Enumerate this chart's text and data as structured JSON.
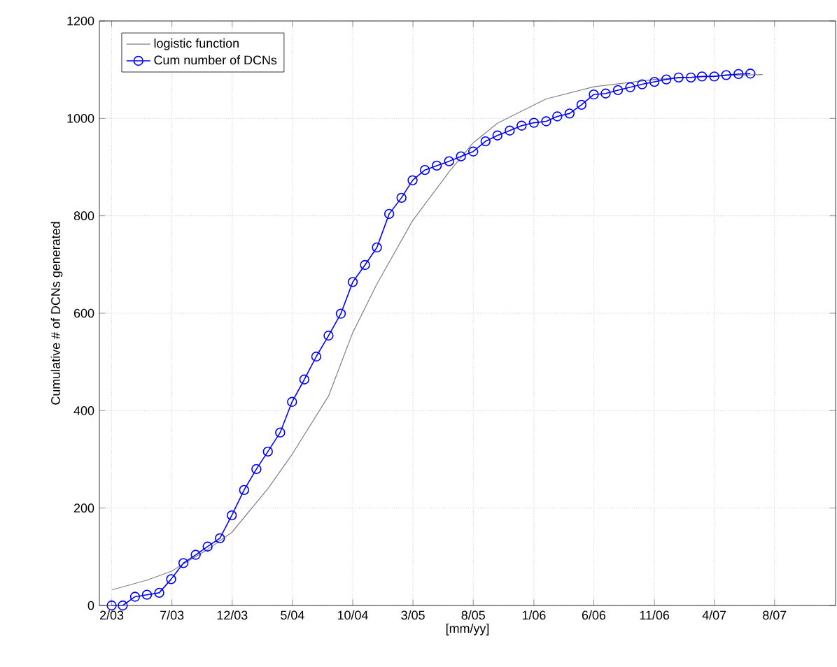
{
  "chart_data": {
    "type": "line",
    "xlabel": "[mm/yy]",
    "ylabel": "Cumulative # of DCNs generated",
    "xlim": [
      "2003-01-01",
      "2008-02-01"
    ],
    "ylim": [
      0,
      1200
    ],
    "xticks": [
      {
        "value": "2003-02-01",
        "label": "2/03"
      },
      {
        "value": "2003-07-03",
        "label": "7/03"
      },
      {
        "value": "2003-12-02",
        "label": "12/03"
      },
      {
        "value": "2004-05-02",
        "label": "5/04"
      },
      {
        "value": "2004-10-01",
        "label": "10/04"
      },
      {
        "value": "2005-03-02",
        "label": "3/05"
      },
      {
        "value": "2005-08-01",
        "label": "8/05"
      },
      {
        "value": "2006-01-01",
        "label": "1/06"
      },
      {
        "value": "2006-06-01",
        "label": "6/06"
      },
      {
        "value": "2006-11-01",
        "label": "11/06"
      },
      {
        "value": "2007-04-01",
        "label": "4/07"
      },
      {
        "value": "2007-08-31",
        "label": "8/07"
      }
    ],
    "yticks": [
      0,
      200,
      400,
      600,
      800,
      1000,
      1200
    ],
    "grid": true,
    "legend": "top left",
    "series": [
      {
        "name": "logistic function",
        "color": "#808080",
        "marker": "none",
        "x": [
          "2003-02",
          "2003-05",
          "2003-07",
          "2003-10",
          "2003-12",
          "2004-03",
          "2004-05",
          "2004-08",
          "2004-10",
          "2004-12",
          "2005-03",
          "2005-06",
          "2005-08",
          "2005-10",
          "2006-02",
          "2006-06",
          "2006-11",
          "2007-04",
          "2007-08"
        ],
        "values": [
          32,
          52,
          70,
          115,
          150,
          240,
          310,
          430,
          560,
          660,
          790,
          890,
          950,
          990,
          1040,
          1065,
          1080,
          1087,
          1090
        ]
      },
      {
        "name": "Cum number of DCNs",
        "color": "#0000ff",
        "marker": "circle",
        "x": [
          "2003-02",
          "2003-03",
          "2003-04",
          "2003-05",
          "2003-06",
          "2003-07",
          "2003-08",
          "2003-09",
          "2003-10",
          "2003-11",
          "2003-12",
          "2004-01",
          "2004-02",
          "2004-03",
          "2004-04",
          "2004-05",
          "2004-06",
          "2004-07",
          "2004-08",
          "2004-09",
          "2004-10",
          "2004-11",
          "2004-12",
          "2005-01",
          "2005-02",
          "2005-03",
          "2005-04",
          "2005-05",
          "2005-06",
          "2005-07",
          "2005-08",
          "2005-09",
          "2005-10",
          "2005-11",
          "2005-12",
          "2006-01",
          "2006-02",
          "2006-03",
          "2006-04",
          "2006-05",
          "2006-06",
          "2006-07",
          "2006-08",
          "2006-09",
          "2006-10",
          "2006-11",
          "2006-12",
          "2007-01",
          "2007-02",
          "2007-03",
          "2007-04",
          "2007-05",
          "2007-06",
          "2007-07"
        ],
        "values": [
          0,
          0,
          18,
          22,
          26,
          54,
          87,
          104,
          121,
          138,
          185,
          237,
          280,
          316,
          355,
          418,
          464,
          511,
          554,
          599,
          664,
          699,
          735,
          804,
          837,
          873,
          894,
          903,
          912,
          922,
          932,
          953,
          965,
          975,
          985,
          991,
          994,
          1004,
          1010,
          1028,
          1049,
          1051,
          1058,
          1064,
          1070,
          1075,
          1080,
          1084,
          1084,
          1086,
          1086,
          1089,
          1091,
          1092
        ]
      }
    ]
  }
}
